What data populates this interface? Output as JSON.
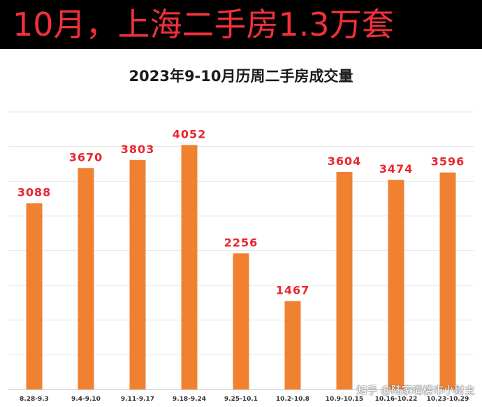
{
  "banner": {
    "title": "10月，上海二手房1.3万套"
  },
  "chart_data": {
    "type": "bar",
    "title": "2023年9-10月历周二手房成交量",
    "categories": [
      "8.28-9.3",
      "9.4-9.10",
      "9.11-9.17",
      "9.18-9.24",
      "9.25-10.1",
      "10.2-10.8",
      "10.9-10.15",
      "10.16-10.22",
      "10.23-10.29"
    ],
    "values": [
      3088,
      3670,
      3803,
      4052,
      2256,
      1467,
      3604,
      3474,
      3596
    ],
    "ylim": [
      0,
      4600
    ],
    "grid": true,
    "legend": "none",
    "colors": {
      "bar": "#f08130",
      "label": "#e8262e",
      "grid": "#e6e6e6"
    }
  },
  "watermark": {
    "text": "知乎 @陆家嘴楼市小财主"
  }
}
